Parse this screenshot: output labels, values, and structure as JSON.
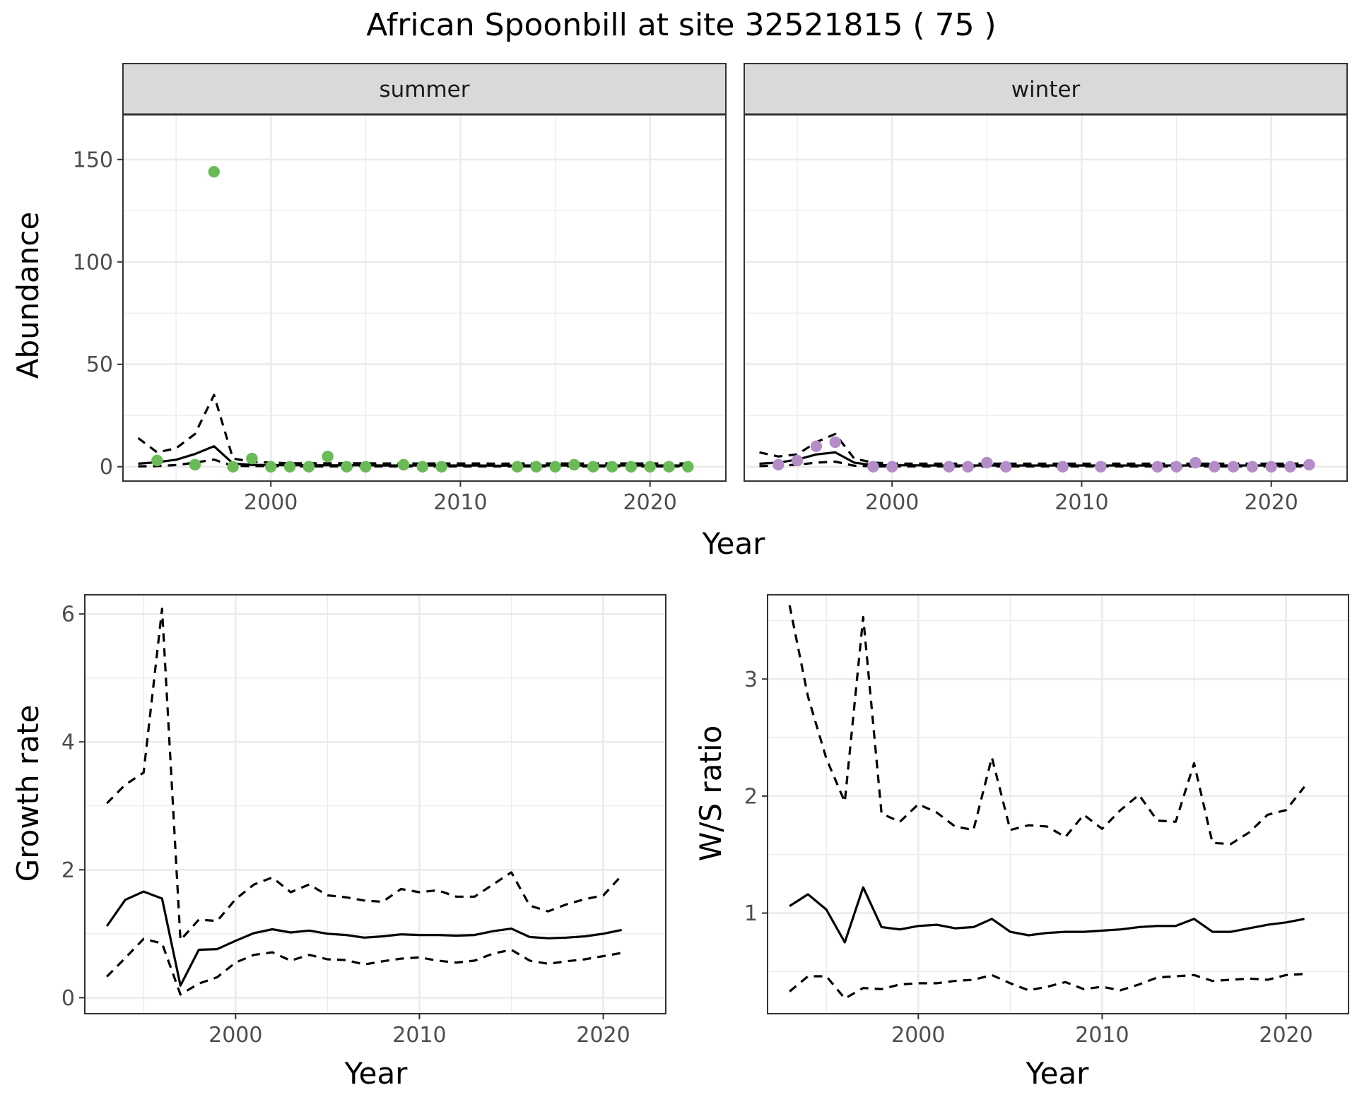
{
  "title": "African Spoonbill at site 32521815 ( 75 )",
  "colors": {
    "summer": "#6aba55",
    "winter": "#b48cc8",
    "line": "#000000"
  },
  "chart_data": [
    {
      "type": "scatter",
      "facets": [
        "summer",
        "winter"
      ],
      "xlabel": "Year",
      "ylabel": "Abundance",
      "xlim": [
        1992.2,
        2024.0
      ],
      "ylim": [
        -7,
        172
      ],
      "xticks": [
        2000,
        2010,
        2020
      ],
      "yticks": [
        0,
        50,
        100,
        150
      ],
      "panels": [
        {
          "strip": "summer",
          "color": "#6aba55",
          "points": {
            "x": [
              1994,
              1996,
              1997,
              1998,
              1999,
              2000,
              2001,
              2002,
              2003,
              2004,
              2005,
              2007,
              2008,
              2009,
              2013,
              2014,
              2015,
              2016,
              2017,
              2018,
              2019,
              2020,
              2021,
              2022
            ],
            "y": [
              3,
              1,
              144,
              0,
              4,
              0,
              0,
              0,
              5,
              0,
              0,
              1,
              0,
              0,
              0,
              0,
              0,
              1,
              0,
              0,
              0,
              0,
              0,
              0
            ]
          },
          "fit": {
            "x": [
              1993,
              1994,
              1995,
              1996,
              1997,
              1998,
              1999,
              2000,
              2001,
              2002,
              2003,
              2004,
              2005,
              2006,
              2007,
              2008,
              2009,
              2010,
              2011,
              2012,
              2013,
              2014,
              2015,
              2016,
              2017,
              2018,
              2019,
              2020,
              2021,
              2022
            ],
            "y": [
              1.5,
              2.2,
              3.4,
              6.2,
              10.0,
              1.6,
              0.9,
              0.8,
              0.7,
              0.7,
              0.7,
              0.7,
              0.7,
              0.6,
              0.6,
              0.6,
              0.6,
              0.6,
              0.6,
              0.5,
              0.6,
              0.6,
              0.6,
              0.6,
              0.6,
              0.6,
              0.6,
              0.6,
              0.6,
              0.6
            ],
            "upper": [
              14,
              7,
              9,
              16,
              35,
              4,
              2.4,
              2.0,
              1.7,
              1.7,
              1.7,
              1.7,
              1.7,
              1.6,
              1.6,
              1.6,
              1.6,
              1.6,
              1.6,
              1.5,
              1.6,
              1.6,
              1.6,
              1.6,
              1.6,
              1.6,
              1.6,
              1.6,
              1.6,
              1.6
            ],
            "lower": [
              0.2,
              0.3,
              0.8,
              2.0,
              3.5,
              0.4,
              0.3,
              0.3,
              0.2,
              0.2,
              0.2,
              0.2,
              0.2,
              0.2,
              0.2,
              0.2,
              0.2,
              0.2,
              0.2,
              0.2,
              0.2,
              0.2,
              0.2,
              0.2,
              0.2,
              0.2,
              0.2,
              0.2,
              0.2,
              0.2
            ]
          }
        },
        {
          "strip": "winter",
          "color": "#b48cc8",
          "points": {
            "x": [
              1994,
              1995,
              1996,
              1997,
              1999,
              2000,
              2003,
              2004,
              2005,
              2006,
              2009,
              2011,
              2014,
              2015,
              2016,
              2017,
              2018,
              2019,
              2020,
              2021,
              2022
            ],
            "y": [
              1,
              3,
              10,
              12,
              0,
              0,
              0,
              0,
              2,
              0,
              0,
              0,
              0,
              0,
              2,
              0,
              0,
              0,
              0,
              0,
              1
            ]
          },
          "fit": {
            "x": [
              1993,
              1994,
              1995,
              1996,
              1997,
              1998,
              1999,
              2000,
              2001,
              2002,
              2003,
              2004,
              2005,
              2006,
              2007,
              2008,
              2009,
              2010,
              2011,
              2012,
              2013,
              2014,
              2015,
              2016,
              2017,
              2018,
              2019,
              2020,
              2021,
              2022
            ],
            "y": [
              1.5,
              2.0,
              3.5,
              6.0,
              7.0,
              2.0,
              0.8,
              0.7,
              0.7,
              0.6,
              0.6,
              0.6,
              0.6,
              0.6,
              0.6,
              0.6,
              0.6,
              0.6,
              0.6,
              0.6,
              0.6,
              0.6,
              0.6,
              0.6,
              0.6,
              0.6,
              0.6,
              0.6,
              0.6,
              0.7
            ],
            "upper": [
              7,
              5,
              6,
              12,
              16,
              4,
              2.0,
              1.6,
              1.5,
              1.5,
              1.5,
              1.5,
              1.5,
              1.5,
              1.5,
              1.5,
              1.5,
              1.5,
              1.5,
              1.5,
              1.5,
              1.5,
              1.5,
              1.5,
              1.5,
              1.5,
              1.5,
              1.5,
              1.5,
              1.6
            ],
            "lower": [
              0.3,
              0.5,
              1.0,
              2.0,
              2.5,
              0.5,
              0.2,
              0.2,
              0.2,
              0.2,
              0.2,
              0.2,
              0.2,
              0.2,
              0.2,
              0.2,
              0.2,
              0.2,
              0.2,
              0.2,
              0.2,
              0.2,
              0.2,
              0.2,
              0.2,
              0.2,
              0.2,
              0.2,
              0.2,
              0.2
            ]
          }
        }
      ]
    },
    {
      "type": "line",
      "xlabel": "Year",
      "ylabel": "Growth rate",
      "xlim": [
        1991.8,
        2023.4
      ],
      "ylim": [
        -0.25,
        6.3
      ],
      "xticks": [
        2000,
        2010,
        2020
      ],
      "yticks": [
        0,
        2,
        4,
        6
      ],
      "x": [
        1993,
        1994,
        1995,
        1996,
        1997,
        1998,
        1999,
        2000,
        2001,
        2002,
        2003,
        2004,
        2005,
        2006,
        2007,
        2008,
        2009,
        2010,
        2011,
        2012,
        2013,
        2014,
        2015,
        2016,
        2017,
        2018,
        2019,
        2020,
        2021
      ],
      "series": [
        {
          "role": "estimate",
          "values": [
            1.12,
            1.53,
            1.66,
            1.55,
            0.19,
            0.75,
            0.76,
            0.89,
            1.01,
            1.07,
            1.02,
            1.05,
            1.0,
            0.98,
            0.94,
            0.96,
            0.99,
            0.98,
            0.98,
            0.97,
            0.98,
            1.04,
            1.08,
            0.95,
            0.93,
            0.94,
            0.96,
            1.0,
            1.06
          ]
        },
        {
          "role": "upper",
          "values": [
            3.04,
            3.33,
            3.52,
            6.08,
            0.9,
            1.22,
            1.2,
            1.54,
            1.77,
            1.88,
            1.65,
            1.77,
            1.6,
            1.57,
            1.52,
            1.5,
            1.7,
            1.65,
            1.68,
            1.58,
            1.58,
            1.77,
            1.96,
            1.44,
            1.35,
            1.46,
            1.54,
            1.6,
            1.91
          ]
        },
        {
          "role": "lower",
          "values": [
            0.33,
            0.62,
            0.92,
            0.85,
            0.05,
            0.22,
            0.32,
            0.55,
            0.67,
            0.71,
            0.58,
            0.67,
            0.6,
            0.59,
            0.52,
            0.57,
            0.61,
            0.63,
            0.58,
            0.55,
            0.58,
            0.69,
            0.75,
            0.58,
            0.53,
            0.57,
            0.6,
            0.65,
            0.7
          ]
        }
      ]
    },
    {
      "type": "line",
      "xlabel": "Year",
      "ylabel": "W/S ratio",
      "xlim": [
        1991.8,
        2023.4
      ],
      "ylim": [
        0.14,
        3.72
      ],
      "xticks": [
        2000,
        2010,
        2020
      ],
      "yticks": [
        1,
        2,
        3
      ],
      "x": [
        1993,
        1994,
        1995,
        1996,
        1997,
        1998,
        1999,
        2000,
        2001,
        2002,
        2003,
        2004,
        2005,
        2006,
        2007,
        2008,
        2009,
        2010,
        2011,
        2012,
        2013,
        2014,
        2015,
        2016,
        2017,
        2018,
        2019,
        2020,
        2021
      ],
      "series": [
        {
          "role": "estimate",
          "values": [
            1.06,
            1.16,
            1.03,
            0.75,
            1.22,
            0.88,
            0.86,
            0.89,
            0.9,
            0.87,
            0.88,
            0.95,
            0.84,
            0.81,
            0.83,
            0.84,
            0.84,
            0.85,
            0.86,
            0.88,
            0.89,
            0.89,
            0.95,
            0.84,
            0.84,
            0.87,
            0.9,
            0.92,
            0.95
          ]
        },
        {
          "role": "upper",
          "values": [
            3.63,
            2.85,
            2.32,
            1.95,
            3.53,
            1.85,
            1.78,
            1.93,
            1.86,
            1.74,
            1.71,
            2.33,
            1.71,
            1.75,
            1.74,
            1.65,
            1.84,
            1.72,
            1.88,
            2.01,
            1.79,
            1.78,
            2.28,
            1.6,
            1.59,
            1.69,
            1.84,
            1.88,
            2.08
          ]
        },
        {
          "role": "lower",
          "values": [
            0.33,
            0.46,
            0.46,
            0.27,
            0.36,
            0.35,
            0.39,
            0.4,
            0.4,
            0.42,
            0.43,
            0.47,
            0.4,
            0.34,
            0.37,
            0.41,
            0.35,
            0.37,
            0.34,
            0.39,
            0.45,
            0.46,
            0.47,
            0.42,
            0.43,
            0.44,
            0.43,
            0.47,
            0.48
          ]
        }
      ]
    }
  ]
}
